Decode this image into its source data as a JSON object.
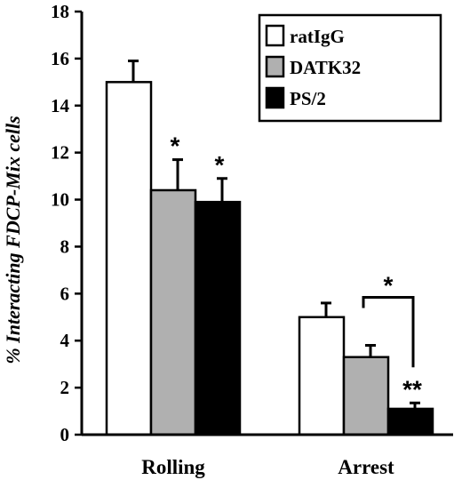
{
  "chart_data": {
    "type": "bar",
    "ylabel": "% Interacting FDCP-Mix cells",
    "xlabel": "",
    "ylim": [
      0,
      18
    ],
    "yticks": [
      0,
      2,
      4,
      6,
      8,
      10,
      12,
      14,
      16,
      18
    ],
    "categories": [
      "Rolling",
      "Arrest"
    ],
    "legend_position": "top-right",
    "series": [
      {
        "name": "ratIgG",
        "color": "#ffffff",
        "values": [
          15.0,
          5.0
        ],
        "errors": [
          0.9,
          0.6
        ]
      },
      {
        "name": "DATK32",
        "color": "#b0b0b0",
        "values": [
          10.4,
          3.3
        ],
        "errors": [
          1.3,
          0.5
        ]
      },
      {
        "name": "PS/2",
        "color": "#000000",
        "values": [
          9.9,
          1.1
        ],
        "errors": [
          1.0,
          0.25
        ]
      }
    ],
    "annotations": [
      {
        "category": 0,
        "series": 1,
        "text": "*"
      },
      {
        "category": 0,
        "series": 2,
        "text": "*"
      },
      {
        "category": 1,
        "series": 2,
        "text": "**"
      },
      {
        "category": 1,
        "bracket_between_series": [
          1,
          2
        ],
        "text": "*"
      }
    ]
  }
}
